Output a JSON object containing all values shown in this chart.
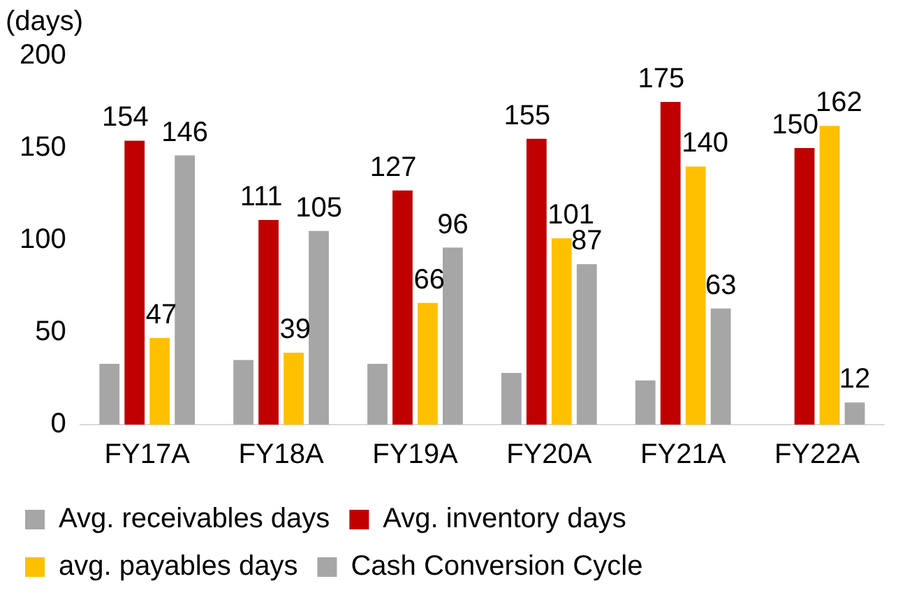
{
  "chart_data": {
    "type": "bar",
    "ylabel": "(days)",
    "categories": [
      "FY17A",
      "FY18A",
      "FY19A",
      "FY20A",
      "FY21A",
      "FY22A"
    ],
    "series": [
      {
        "name": "Avg. receivables days",
        "color": "#a6a6a6",
        "values": [
          33,
          35,
          33,
          28,
          24,
          null
        ]
      },
      {
        "name": "Avg. inventory days",
        "color": "#c00000",
        "values": [
          154,
          111,
          127,
          155,
          175,
          150
        ],
        "value_labels": [
          "154",
          "111",
          "127",
          "155",
          "175",
          "150"
        ]
      },
      {
        "name": "avg. payables days",
        "color": "#ffc000",
        "values": [
          47,
          39,
          66,
          101,
          140,
          162
        ],
        "value_labels": [
          "47",
          "39",
          "66",
          "101",
          "140",
          "162"
        ]
      },
      {
        "name": "Cash Conversion Cycle",
        "color": "#a6a6a6",
        "values": [
          146,
          105,
          96,
          87,
          63,
          12
        ],
        "value_labels": [
          "146",
          "105",
          "96",
          "87",
          "63",
          "12"
        ]
      }
    ],
    "ylim": [
      0,
      200
    ],
    "yticks": [
      0,
      50,
      100,
      150,
      200
    ],
    "grid": false,
    "legend": "bottom"
  }
}
